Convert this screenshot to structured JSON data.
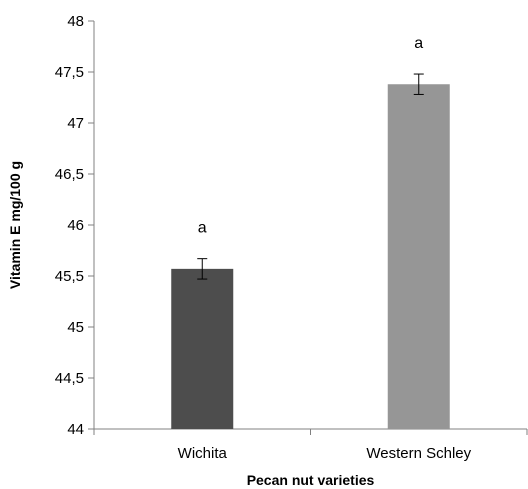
{
  "chart_data": {
    "type": "bar",
    "categories": [
      "Wichita",
      "Western Schley"
    ],
    "values": [
      45.57,
      47.38
    ],
    "errors": [
      0.1,
      0.1
    ],
    "significance_labels": [
      "a",
      "a"
    ],
    "bar_colors": [
      "#4d4d4d",
      "#969696"
    ],
    "xlabel": "Pecan nut varieties",
    "ylabel": "Vitamin E  mg/100 g",
    "ylim": [
      44,
      48
    ],
    "yticks": [
      44,
      44.5,
      45,
      45.5,
      46,
      46.5,
      47,
      47.5,
      48
    ],
    "ytick_labels": [
      "44",
      "44,5",
      "45",
      "45,5",
      "46",
      "46,5",
      "47",
      "47,5",
      "48"
    ],
    "grid": false,
    "legend": "none"
  }
}
